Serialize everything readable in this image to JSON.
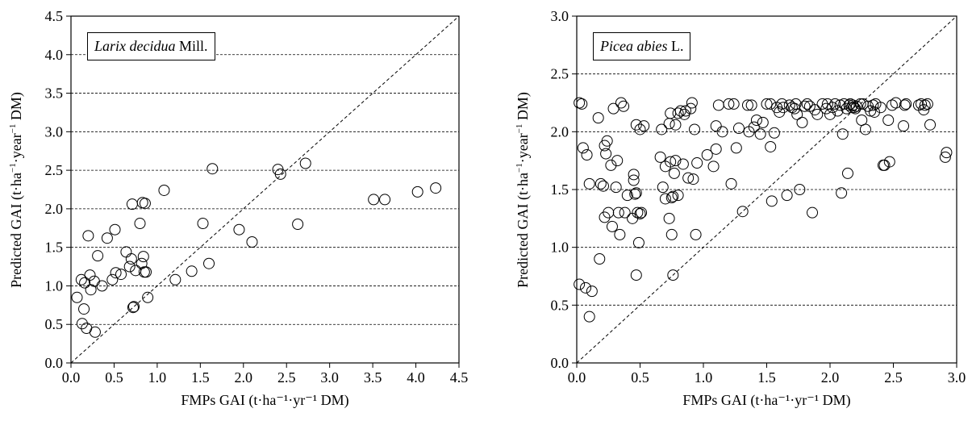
{
  "chart_data": [
    {
      "type": "scatter",
      "legend": {
        "species": "Larix decidua",
        "authority": "Mill."
      },
      "ylabel": {
        "pre": "Predicted GAI (t·ha",
        "sup1": "−1",
        "mid": "·year",
        "sup2": "−1",
        "post": " DM)"
      },
      "xlabel": "FMPs GAI (t·ha⁻¹·yr⁻¹ DM)",
      "xlim": [
        0,
        4.5
      ],
      "ylim": [
        0,
        4.5
      ],
      "xticks": [
        "0.0",
        "0.5",
        "1.0",
        "1.5",
        "2.0",
        "2.5",
        "3.0",
        "3.5",
        "4.0",
        "4.5"
      ],
      "yticks": [
        "0.0",
        "0.5",
        "1.0",
        "1.5",
        "2.0",
        "2.5",
        "3.0",
        "3.5",
        "4.0",
        "4.5"
      ],
      "grid": "horizontal dashed",
      "reference_line": "1:1 dashed",
      "points": [
        [
          0.07,
          0.85
        ],
        [
          0.12,
          1.08
        ],
        [
          0.13,
          0.51
        ],
        [
          0.15,
          0.7
        ],
        [
          0.16,
          1.04
        ],
        [
          0.18,
          0.45
        ],
        [
          0.2,
          1.65
        ],
        [
          0.22,
          1.14
        ],
        [
          0.23,
          0.95
        ],
        [
          0.27,
          1.06
        ],
        [
          0.28,
          0.4
        ],
        [
          0.31,
          1.39
        ],
        [
          0.36,
          1.0
        ],
        [
          0.42,
          1.62
        ],
        [
          0.48,
          1.08
        ],
        [
          0.51,
          1.73
        ],
        [
          0.52,
          1.17
        ],
        [
          0.58,
          1.15
        ],
        [
          0.64,
          1.44
        ],
        [
          0.68,
          1.25
        ],
        [
          0.7,
          1.35
        ],
        [
          0.71,
          2.06
        ],
        [
          0.72,
          0.72
        ],
        [
          0.73,
          0.73
        ],
        [
          0.75,
          1.2
        ],
        [
          0.8,
          1.81
        ],
        [
          0.82,
          1.29
        ],
        [
          0.83,
          2.08
        ],
        [
          0.84,
          1.38
        ],
        [
          0.85,
          1.18
        ],
        [
          0.86,
          2.07
        ],
        [
          0.87,
          1.18
        ],
        [
          0.89,
          0.85
        ],
        [
          1.08,
          2.24
        ],
        [
          1.21,
          1.08
        ],
        [
          1.4,
          1.19
        ],
        [
          1.53,
          1.81
        ],
        [
          1.6,
          1.29
        ],
        [
          1.64,
          2.52
        ],
        [
          1.95,
          1.73
        ],
        [
          2.1,
          1.57
        ],
        [
          2.4,
          2.51
        ],
        [
          2.43,
          2.45
        ],
        [
          2.63,
          1.8
        ],
        [
          2.72,
          2.59
        ],
        [
          3.51,
          2.12
        ],
        [
          3.64,
          2.12
        ],
        [
          4.02,
          2.22
        ],
        [
          4.23,
          2.27
        ]
      ]
    },
    {
      "type": "scatter",
      "legend": {
        "species": "Picea abies",
        "authority": "L."
      },
      "ylabel": {
        "pre": "Predicted GAI (t·ha",
        "sup1": "−1",
        "mid": "·year",
        "sup2": "−1",
        "post": " DM)"
      },
      "xlabel": "FMPs GAI (t·ha⁻¹·yr⁻¹ DM)",
      "xlim": [
        0,
        3.0
      ],
      "ylim": [
        0,
        3.0
      ],
      "xticks": [
        "0.0",
        "0.5",
        "1.0",
        "1.5",
        "2.0",
        "2.5",
        "3.0"
      ],
      "yticks": [
        "0.0",
        "0.5",
        "1.0",
        "1.5",
        "2.0",
        "2.5",
        "3.0"
      ],
      "grid": "horizontal dashed",
      "reference_line": "1:1 dashed",
      "points": [
        [
          0.02,
          0.68
        ],
        [
          0.02,
          2.25
        ],
        [
          0.04,
          2.24
        ],
        [
          0.05,
          1.86
        ],
        [
          0.07,
          0.65
        ],
        [
          0.08,
          1.8
        ],
        [
          0.1,
          0.4
        ],
        [
          0.12,
          0.62
        ],
        [
          0.1,
          1.55
        ],
        [
          0.17,
          2.12
        ],
        [
          0.18,
          0.9
        ],
        [
          0.19,
          1.55
        ],
        [
          0.21,
          1.53
        ],
        [
          0.22,
          1.26
        ],
        [
          0.22,
          1.88
        ],
        [
          0.23,
          1.81
        ],
        [
          0.24,
          1.92
        ],
        [
          0.25,
          1.3
        ],
        [
          0.27,
          1.71
        ],
        [
          0.28,
          1.18
        ],
        [
          0.29,
          2.2
        ],
        [
          0.31,
          1.52
        ],
        [
          0.32,
          1.75
        ],
        [
          0.33,
          1.3
        ],
        [
          0.34,
          1.11
        ],
        [
          0.35,
          2.25
        ],
        [
          0.37,
          2.22
        ],
        [
          0.38,
          1.3
        ],
        [
          0.4,
          1.45
        ],
        [
          0.44,
          1.25
        ],
        [
          0.45,
          1.63
        ],
        [
          0.45,
          1.58
        ],
        [
          0.46,
          1.46
        ],
        [
          0.47,
          0.76
        ],
        [
          0.47,
          1.47
        ],
        [
          0.47,
          2.06
        ],
        [
          0.48,
          1.3
        ],
        [
          0.49,
          1.04
        ],
        [
          0.5,
          2.02
        ],
        [
          0.5,
          1.29
        ],
        [
          0.51,
          1.3
        ],
        [
          0.53,
          2.05
        ],
        [
          0.66,
          1.78
        ],
        [
          0.67,
          2.02
        ],
        [
          0.68,
          1.52
        ],
        [
          0.7,
          1.42
        ],
        [
          0.7,
          1.7
        ],
        [
          0.73,
          1.25
        ],
        [
          0.73,
          2.07
        ],
        [
          0.74,
          2.16
        ],
        [
          0.74,
          1.74
        ],
        [
          0.75,
          1.43
        ],
        [
          0.75,
          1.11
        ],
        [
          0.76,
          0.76
        ],
        [
          0.76,
          1.44
        ],
        [
          0.77,
          1.64
        ],
        [
          0.78,
          2.06
        ],
        [
          0.78,
          1.75
        ],
        [
          0.8,
          1.45
        ],
        [
          0.8,
          2.16
        ],
        [
          0.82,
          2.18
        ],
        [
          0.84,
          1.72
        ],
        [
          0.85,
          2.15
        ],
        [
          0.86,
          2.18
        ],
        [
          0.88,
          1.6
        ],
        [
          0.9,
          2.2
        ],
        [
          0.91,
          2.25
        ],
        [
          0.92,
          1.59
        ],
        [
          0.93,
          2.02
        ],
        [
          0.94,
          1.11
        ],
        [
          0.95,
          1.73
        ],
        [
          1.03,
          1.8
        ],
        [
          1.08,
          1.7
        ],
        [
          1.1,
          1.85
        ],
        [
          1.1,
          2.05
        ],
        [
          1.12,
          2.23
        ],
        [
          1.15,
          2.0
        ],
        [
          1.2,
          2.24
        ],
        [
          1.22,
          1.55
        ],
        [
          1.24,
          2.24
        ],
        [
          1.26,
          1.86
        ],
        [
          1.28,
          2.03
        ],
        [
          1.31,
          1.31
        ],
        [
          1.35,
          2.23
        ],
        [
          1.36,
          2.0
        ],
        [
          1.38,
          2.23
        ],
        [
          1.4,
          2.04
        ],
        [
          1.42,
          2.1
        ],
        [
          1.45,
          1.98
        ],
        [
          1.47,
          2.08
        ],
        [
          1.5,
          2.24
        ],
        [
          1.53,
          2.24
        ],
        [
          1.53,
          1.87
        ],
        [
          1.54,
          1.4
        ],
        [
          1.56,
          1.99
        ],
        [
          1.58,
          2.21
        ],
        [
          1.6,
          2.17
        ],
        [
          1.62,
          2.24
        ],
        [
          1.63,
          2.21
        ],
        [
          1.66,
          1.45
        ],
        [
          1.68,
          2.23
        ],
        [
          1.7,
          2.21
        ],
        [
          1.72,
          2.2
        ],
        [
          1.73,
          2.24
        ],
        [
          1.74,
          2.15
        ],
        [
          1.76,
          1.5
        ],
        [
          1.78,
          2.08
        ],
        [
          1.8,
          2.22
        ],
        [
          1.82,
          2.24
        ],
        [
          1.84,
          2.22
        ],
        [
          1.86,
          1.3
        ],
        [
          1.88,
          2.19
        ],
        [
          1.9,
          2.15
        ],
        [
          1.94,
          2.24
        ],
        [
          1.97,
          2.2
        ],
        [
          1.98,
          2.24
        ],
        [
          2.0,
          2.15
        ],
        [
          2.02,
          2.21
        ],
        [
          2.04,
          2.24
        ],
        [
          2.06,
          2.18
        ],
        [
          2.08,
          2.23
        ],
        [
          2.09,
          1.47
        ],
        [
          2.1,
          1.98
        ],
        [
          2.11,
          2.24
        ],
        [
          2.13,
          2.2
        ],
        [
          2.14,
          1.64
        ],
        [
          2.15,
          2.23
        ],
        [
          2.16,
          2.24
        ],
        [
          2.17,
          2.21
        ],
        [
          2.18,
          2.23
        ],
        [
          2.19,
          2.21
        ],
        [
          2.2,
          2.2
        ],
        [
          2.21,
          2.22
        ],
        [
          2.24,
          2.24
        ],
        [
          2.25,
          2.1
        ],
        [
          2.26,
          2.24
        ],
        [
          2.28,
          2.02
        ],
        [
          2.3,
          2.22
        ],
        [
          2.32,
          2.18
        ],
        [
          2.34,
          2.23
        ],
        [
          2.35,
          2.17
        ],
        [
          2.36,
          2.24
        ],
        [
          2.4,
          2.21
        ],
        [
          2.42,
          1.71
        ],
        [
          2.43,
          1.71
        ],
        [
          2.46,
          2.1
        ],
        [
          2.47,
          1.74
        ],
        [
          2.49,
          2.23
        ],
        [
          2.52,
          2.25
        ],
        [
          2.58,
          2.05
        ],
        [
          2.59,
          2.23
        ],
        [
          2.6,
          2.24
        ],
        [
          2.7,
          2.23
        ],
        [
          2.72,
          2.24
        ],
        [
          2.74,
          2.19
        ],
        [
          2.75,
          2.23
        ],
        [
          2.77,
          2.24
        ],
        [
          2.79,
          2.06
        ],
        [
          2.91,
          1.78
        ],
        [
          2.92,
          1.82
        ]
      ]
    }
  ]
}
